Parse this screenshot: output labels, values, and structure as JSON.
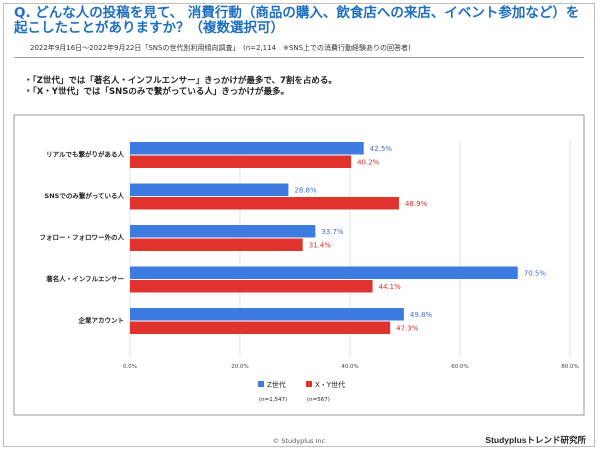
{
  "question": "Q. どんな人の投稿を見て、 消費行動（商品の購入、飲食店への来店、イベント参加など）を起こしたことがありますか？（複数選択可）",
  "survey_note": "2022年9月16日～2022年9月22日「SNSの世代別利用傾向調査」　(n=2,114　※SNS上での消費行動経験ありの回答者)",
  "bullets": [
    "・「Z世代」では「著名人・インフルエンサー」きっかけが最多で、7割を占める。",
    "・「X・Y世代」では「SNSのみで繋がっている人」きっかけが最多。"
  ],
  "footer": {
    "copyright": "© Studyplus Inc.",
    "brand": "Studyplusトレンド研究所"
  },
  "chart_data": {
    "type": "bar",
    "orientation": "horizontal",
    "categories": [
      "リアルでも繋がりがある人",
      "SNSでのみ繋がっている人",
      "フォロー・フォロワー外の人",
      "著名人・インフルエンサー",
      "企業アカウント"
    ],
    "series": [
      {
        "name": "Z世代",
        "sample": "(n=1,547)",
        "color": "#3d7be0",
        "label_color": "#3d6fd0",
        "values": [
          42.5,
          28.8,
          33.7,
          70.5,
          49.8
        ]
      },
      {
        "name": "X・Y世代",
        "sample": "(n=567)",
        "color": "#e0332e",
        "label_color": "#d0302b",
        "values": [
          40.2,
          48.9,
          31.4,
          44.1,
          47.3
        ]
      }
    ],
    "xlim": [
      0,
      80
    ],
    "ticks": [
      "0.0%",
      "20.0%",
      "40.0%",
      "60.0%",
      "80.0%"
    ],
    "value_suffix": "%",
    "legend_position": "bottom",
    "grid": true
  }
}
